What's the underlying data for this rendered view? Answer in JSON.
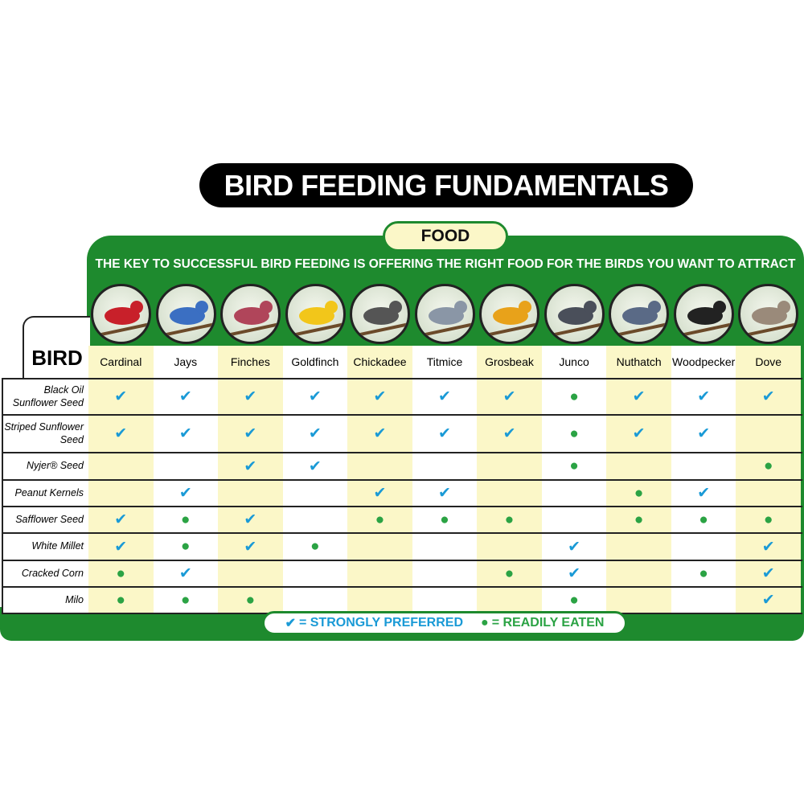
{
  "title": "BIRD FEEDING FUNDAMENTALS",
  "food_label": "FOOD",
  "subtitle": "THE KEY TO SUCCESSFUL BIRD FEEDING IS OFFERING THE RIGHT FOOD FOR THE BIRDS YOU WANT TO ATTRACT",
  "bird_label": "BIRD",
  "birds": [
    "Cardinal",
    "Jays",
    "Finches",
    "Goldfinch",
    "Chickadee",
    "Titmice",
    "Grosbeak",
    "Junco",
    "Nuthatch",
    "Woodpecker",
    "Dove"
  ],
  "rows": [
    {
      "label": "Black Oil Sunflower Seed",
      "cells": [
        "✔",
        "✔",
        "✔",
        "✔",
        "✔",
        "✔",
        "✔",
        "●",
        "✔",
        "✔",
        "✔"
      ]
    },
    {
      "label": "Striped Sunflower Seed",
      "cells": [
        "✔",
        "✔",
        "✔",
        "✔",
        "✔",
        "✔",
        "✔",
        "●",
        "✔",
        "✔",
        null
      ]
    },
    {
      "label": "Nyjer® Seed",
      "cells": [
        null,
        null,
        "✔",
        "✔",
        null,
        null,
        null,
        "●",
        null,
        null,
        "●"
      ]
    },
    {
      "label": "Peanut Kernels",
      "cells": [
        null,
        "✔",
        null,
        null,
        "✔",
        "✔",
        null,
        null,
        "●",
        "✔",
        null
      ]
    },
    {
      "label": "Safflower Seed",
      "cells": [
        "✔",
        "●",
        "✔",
        null,
        "●",
        "●",
        "●",
        null,
        "●",
        "●",
        "●"
      ]
    },
    {
      "label": "White Millet",
      "cells": [
        "✔",
        "●",
        "✔",
        "●",
        null,
        null,
        null,
        "✔",
        null,
        null,
        "✔"
      ]
    },
    {
      "label": "Cracked Corn",
      "cells": [
        "●",
        "✔",
        null,
        null,
        null,
        null,
        "●",
        "✔",
        null,
        "●",
        "✔"
      ]
    },
    {
      "label": "Milo",
      "cells": [
        "●",
        "●",
        "●",
        null,
        null,
        null,
        null,
        "●",
        null,
        null,
        "✔"
      ]
    }
  ],
  "legend": [
    {
      "symbol": "✔",
      "label": "= STRONGLY PREFERRED"
    },
    {
      "symbol": "●",
      "label": "= READILY EATEN"
    }
  ]
}
